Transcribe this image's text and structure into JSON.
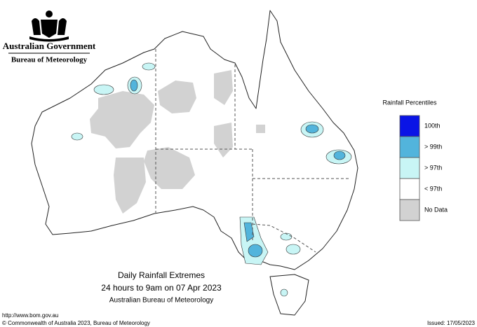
{
  "header": {
    "government": "Australian Government",
    "agency": "Bureau of Meteorology"
  },
  "legend": {
    "title": "Rainfall Percentiles",
    "items": [
      {
        "label": "100th",
        "color": "#0a14e6"
      },
      {
        "label": "> 99th",
        "color": "#52b4dc"
      },
      {
        "label": "> 97th",
        "color": "#c8f5f5"
      },
      {
        "label": "< 97th",
        "color": "#ffffff"
      },
      {
        "label": "No Data",
        "color": "#d2d2d2"
      }
    ]
  },
  "caption": {
    "title": "Daily Rainfall Extremes",
    "period": "24 hours to 9am on 07 Apr 2023",
    "source": "Australian Bureau of Meteorology"
  },
  "footer": {
    "url": "http://www.bom.gov.au",
    "copyright": "© Commonwealth of Australia 2023, Bureau of Meteorology",
    "issued": "Issued: 17/05/2023"
  }
}
